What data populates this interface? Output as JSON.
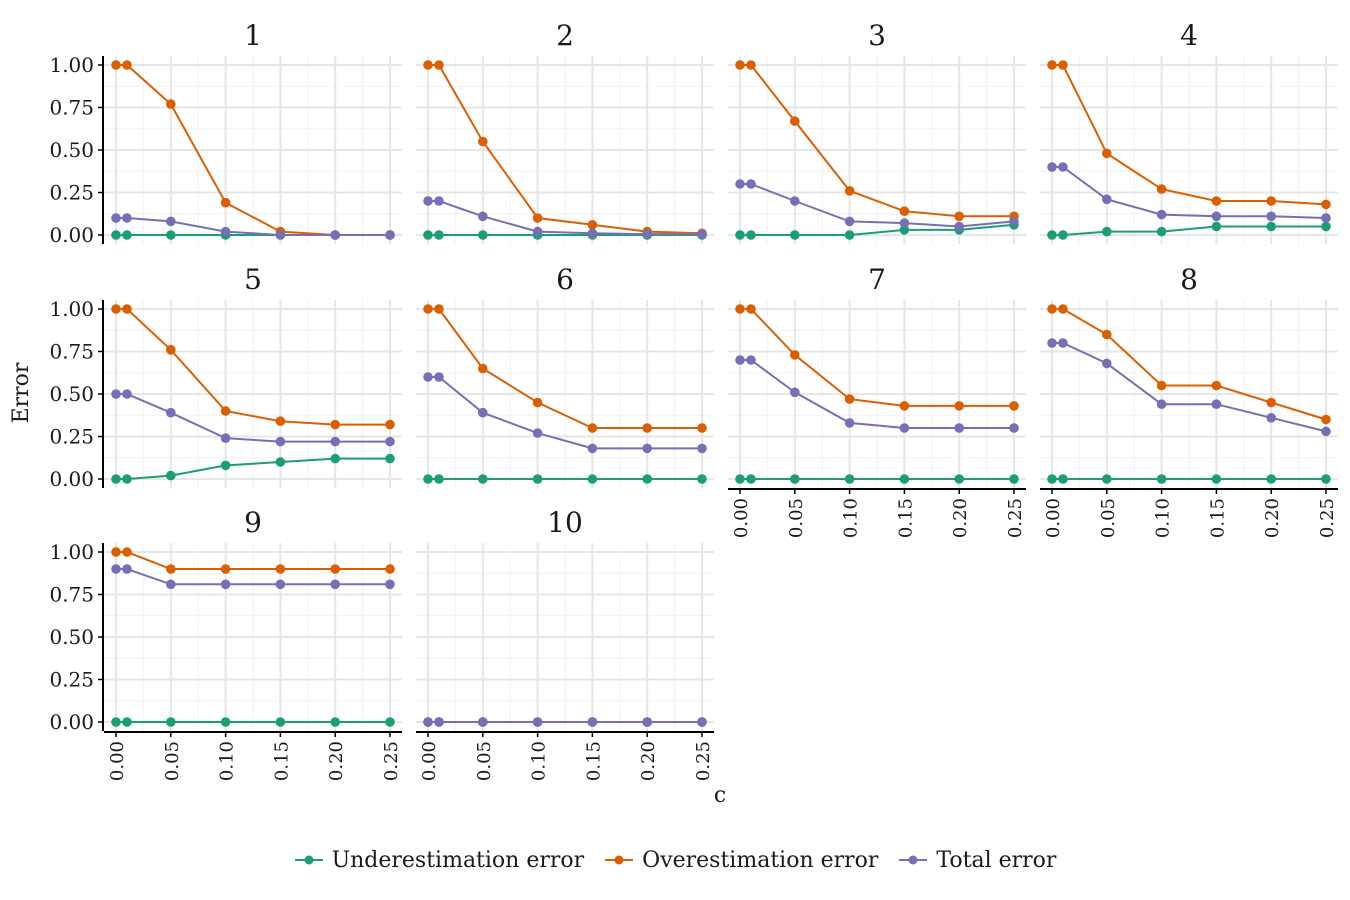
{
  "chart_data": {
    "type": "line",
    "layout": "facet",
    "x": [
      0,
      0.01,
      0.05,
      0.1,
      0.15,
      0.2,
      0.25
    ],
    "x_tick_labels": [
      "0.00",
      "0.05",
      "0.10",
      "0.15",
      "0.20",
      "0.25"
    ],
    "y_tick_labels": [
      "0.00",
      "0.25",
      "0.50",
      "0.75",
      "1.00"
    ],
    "xlabel": "c",
    "ylabel": "Error",
    "xlim": [
      0,
      0.25
    ],
    "ylim": [
      0,
      1
    ],
    "grid": true,
    "legend_position": "bottom",
    "series_meta": [
      {
        "name": "Underestimation error",
        "color": "#1b9e77"
      },
      {
        "name": "Overestimation error",
        "color": "#d95f02"
      },
      {
        "name": "Total error",
        "color": "#7570b3"
      }
    ],
    "panels": [
      {
        "title": "1",
        "series": [
          [
            0,
            0,
            0,
            0,
            0,
            0,
            0
          ],
          [
            1,
            1,
            0.77,
            0.19,
            0.02,
            0,
            0
          ],
          [
            0.1,
            0.1,
            0.08,
            0.02,
            0,
            0,
            0
          ]
        ]
      },
      {
        "title": "2",
        "series": [
          [
            0,
            0,
            0,
            0,
            0,
            0,
            0
          ],
          [
            1,
            1,
            0.55,
            0.1,
            0.06,
            0.02,
            0.01
          ],
          [
            0.2,
            0.2,
            0.11,
            0.02,
            0.01,
            0.005,
            0.005
          ]
        ]
      },
      {
        "title": "3",
        "series": [
          [
            0,
            0,
            0,
            0,
            0.03,
            0.03,
            0.06
          ],
          [
            1,
            1,
            0.67,
            0.26,
            0.14,
            0.11,
            0.11
          ],
          [
            0.3,
            0.3,
            0.2,
            0.08,
            0.07,
            0.05,
            0.08
          ]
        ]
      },
      {
        "title": "4",
        "series": [
          [
            0,
            0,
            0.02,
            0.02,
            0.05,
            0.05,
            0.05
          ],
          [
            1,
            1,
            0.48,
            0.27,
            0.2,
            0.2,
            0.18
          ],
          [
            0.4,
            0.4,
            0.21,
            0.12,
            0.11,
            0.11,
            0.1
          ]
        ]
      },
      {
        "title": "5",
        "series": [
          [
            0,
            0,
            0.02,
            0.08,
            0.1,
            0.12,
            0.12
          ],
          [
            1,
            1,
            0.76,
            0.4,
            0.34,
            0.32,
            0.32
          ],
          [
            0.5,
            0.5,
            0.39,
            0.24,
            0.22,
            0.22,
            0.22
          ]
        ]
      },
      {
        "title": "6",
        "series": [
          [
            0,
            0,
            0,
            0,
            0,
            0,
            0
          ],
          [
            1,
            1,
            0.65,
            0.45,
            0.3,
            0.3,
            0.3
          ],
          [
            0.6,
            0.6,
            0.39,
            0.27,
            0.18,
            0.18,
            0.18
          ]
        ]
      },
      {
        "title": "7",
        "series": [
          [
            0,
            0,
            0,
            0,
            0,
            0,
            0
          ],
          [
            1,
            1,
            0.73,
            0.47,
            0.43,
            0.43,
            0.43
          ],
          [
            0.7,
            0.7,
            0.51,
            0.33,
            0.3,
            0.3,
            0.3
          ]
        ]
      },
      {
        "title": "8",
        "series": [
          [
            0,
            0,
            0,
            0,
            0,
            0,
            0
          ],
          [
            1,
            1,
            0.85,
            0.55,
            0.55,
            0.45,
            0.35
          ],
          [
            0.8,
            0.8,
            0.68,
            0.44,
            0.44,
            0.36,
            0.28
          ]
        ]
      },
      {
        "title": "9",
        "series": [
          [
            0,
            0,
            0,
            0,
            0,
            0,
            0
          ],
          [
            1,
            1,
            0.9,
            0.9,
            0.9,
            0.9,
            0.9
          ],
          [
            0.9,
            0.9,
            0.81,
            0.81,
            0.81,
            0.81,
            0.81
          ]
        ]
      },
      {
        "title": "10",
        "series": [
          [
            0,
            0,
            0,
            0,
            0,
            0,
            0
          ],
          [
            0,
            0,
            0,
            0,
            0,
            0,
            0
          ],
          [
            0,
            0,
            0,
            0,
            0,
            0,
            0
          ]
        ]
      }
    ]
  }
}
